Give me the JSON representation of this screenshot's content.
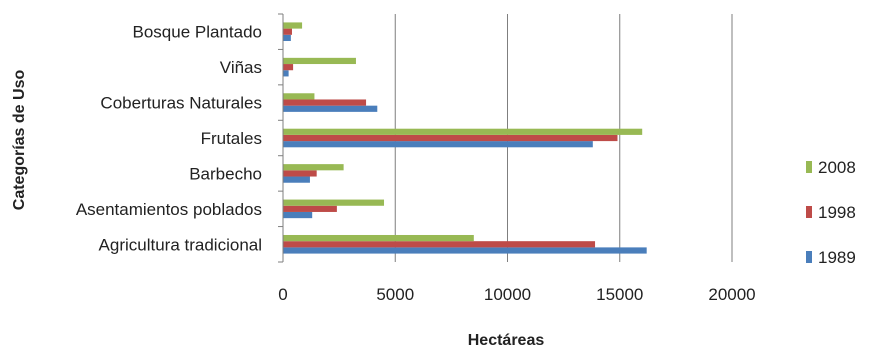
{
  "chart_data": {
    "type": "bar",
    "orientation": "horizontal",
    "categories": [
      "Agricultura tradicional",
      "Asentamientos poblados",
      "Barbecho",
      "Frutales",
      "Coberturas Naturales",
      "Viñas",
      "Bosque Plantado"
    ],
    "series": [
      {
        "name": "1989",
        "color": "#4a7ebb",
        "values": [
          16200,
          1300,
          1200,
          13800,
          4200,
          250,
          350
        ]
      },
      {
        "name": "1998",
        "color": "#be4b48",
        "values": [
          13900,
          2400,
          1500,
          14900,
          3700,
          450,
          400
        ]
      },
      {
        "name": "2008",
        "color": "#98b954",
        "values": [
          8500,
          4500,
          2700,
          16000,
          1400,
          3250,
          850
        ]
      }
    ],
    "xlim": [
      0,
      20000
    ],
    "xticks": [
      "0",
      "5000",
      "10000",
      "15000",
      "20000"
    ],
    "xlabel": "Hectáreas",
    "ylabel": "Categorías de Uso",
    "grid": "vertical",
    "legend_position": "right",
    "legend_order": [
      "2008",
      "1998",
      "1989"
    ]
  }
}
